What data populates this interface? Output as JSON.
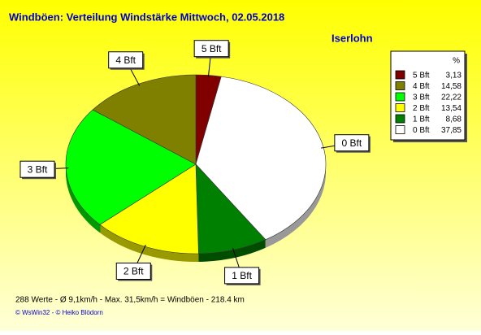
{
  "chart_data": {
    "type": "pie",
    "title": "Windböen: Verteilung Windstärke  Mittwoch, 02.05.2018",
    "subtitle": "Iserlohn",
    "categories": [
      "5 Bft",
      "4 Bft",
      "3 Bft",
      "2 Bft",
      "1 Bft",
      "0 Bft"
    ],
    "values": [
      3.13,
      14.58,
      22.22,
      13.54,
      8.68,
      37.85
    ],
    "value_labels": [
      "3,13",
      "14,58",
      "22,22",
      "13,54",
      "8,68",
      "37,85"
    ],
    "colors": [
      "#800000",
      "#808000",
      "#00ff00",
      "#ffff00",
      "#008000",
      "#ffffff"
    ],
    "legend_header": "%",
    "legend": "upper right"
  },
  "footer": {
    "stats": "288 Werte   -   Ø 9,1km/h  -  Max. 31,5km/h = Windböen   -   218.4 km",
    "credits": "© WsWin32  -  © Heiko Blödorn"
  }
}
